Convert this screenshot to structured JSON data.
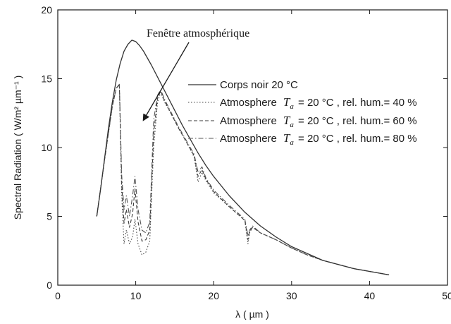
{
  "chart_data": {
    "type": "line",
    "title": "",
    "xlabel": "λ ( µm )",
    "ylabel": "Spectral Radiation ( W/m² µm⁻¹ )",
    "xlim": [
      0,
      50
    ],
    "ylim": [
      0,
      20
    ],
    "xticks": [
      0,
      10,
      20,
      30,
      40,
      50
    ],
    "yticks": [
      0,
      5,
      10,
      15,
      20
    ],
    "grid": false,
    "legend_position": "top-right",
    "annotation": {
      "text": "Fenêtre atmosphérique",
      "arrow_to": [
        11,
        12
      ]
    },
    "series": [
      {
        "name": "Corps noir 20 °C",
        "style": "solid",
        "color": "#333333",
        "x": [
          5,
          5.5,
          6,
          6.5,
          7,
          7.5,
          8,
          8.5,
          9,
          9.5,
          10,
          10.5,
          11,
          11.5,
          12,
          13,
          14,
          15,
          16,
          17,
          18,
          19,
          20,
          22,
          24,
          26,
          28,
          30,
          32,
          34,
          36,
          38,
          40,
          42.5
        ],
        "y": [
          5.0,
          7.0,
          9.2,
          11.4,
          13.3,
          14.9,
          16.1,
          17.0,
          17.5,
          17.8,
          17.7,
          17.4,
          17.0,
          16.5,
          16.0,
          14.9,
          13.8,
          12.7,
          11.6,
          10.6,
          9.6,
          8.7,
          7.9,
          6.5,
          5.3,
          4.3,
          3.5,
          2.8,
          2.3,
          1.8,
          1.5,
          1.2,
          1.0,
          0.75
        ]
      },
      {
        "name": "rel. hum.= 40 %",
        "style": "dotted",
        "color": "#444444",
        "x": [
          5,
          6,
          7,
          7.5,
          7.9,
          8.2,
          8.5,
          8.8,
          9.2,
          9.6,
          9.9,
          10.3,
          10.8,
          11.3,
          11.8,
          12.3,
          12.8,
          13.2,
          13.7,
          14.5,
          15.5,
          16.5,
          17.5,
          18.0,
          18.5,
          19,
          20,
          22,
          24,
          24.4,
          24.6,
          25,
          26,
          28,
          30,
          32,
          34,
          36,
          38,
          40,
          42.5
        ],
        "y": [
          5.0,
          9.1,
          13.0,
          14.3,
          14.5,
          6.5,
          3.0,
          4.0,
          3.0,
          3.5,
          4.8,
          3.0,
          2.2,
          2.4,
          3.2,
          10.0,
          13.3,
          14.0,
          13.3,
          12.5,
          11.4,
          10.4,
          9.3,
          7.5,
          8.2,
          7.6,
          6.7,
          5.7,
          4.7,
          3.0,
          3.8,
          4.2,
          3.8,
          3.3,
          2.7,
          2.2,
          1.8,
          1.5,
          1.2,
          1.0,
          0.75
        ]
      },
      {
        "name": "rel. hum.= 60 %",
        "style": "dashed",
        "color": "#3a3a3a",
        "x": [
          5,
          6,
          7,
          7.5,
          7.9,
          8.2,
          8.5,
          8.8,
          9.2,
          9.6,
          9.9,
          10.3,
          10.8,
          11.3,
          11.8,
          12.3,
          12.8,
          13.2,
          13.7,
          14.5,
          15.5,
          16.5,
          17.5,
          18.0,
          18.5,
          19,
          20,
          22,
          24,
          24.4,
          24.6,
          25,
          26,
          28,
          30,
          32,
          34,
          36,
          38,
          40,
          42.5
        ],
        "y": [
          5.0,
          9.1,
          13.0,
          14.3,
          14.6,
          7.3,
          4.5,
          5.5,
          4.2,
          5.2,
          7.0,
          4.6,
          3.2,
          3.3,
          4.0,
          11.0,
          13.6,
          14.1,
          13.4,
          12.5,
          11.4,
          10.4,
          9.4,
          7.9,
          8.4,
          7.7,
          6.8,
          5.7,
          4.7,
          3.3,
          3.9,
          4.2,
          3.8,
          3.3,
          2.7,
          2.2,
          1.8,
          1.5,
          1.2,
          1.0,
          0.75
        ]
      },
      {
        "name": "rel. hum.= 80 %",
        "style": "dashdot",
        "color": "#555555",
        "x": [
          5,
          6,
          7,
          7.5,
          7.9,
          8.2,
          8.5,
          8.8,
          9.2,
          9.6,
          9.9,
          10.3,
          10.8,
          11.3,
          11.8,
          12.3,
          12.8,
          13.2,
          13.7,
          14.5,
          15.5,
          16.5,
          17.5,
          18.0,
          18.5,
          19,
          20,
          22,
          24,
          24.4,
          24.6,
          25,
          26,
          28,
          30,
          32,
          34,
          36,
          38,
          40,
          42.5
        ],
        "y": [
          5.0,
          9.1,
          13.0,
          14.3,
          14.6,
          8.0,
          5.5,
          6.5,
          5.0,
          6.5,
          7.9,
          5.5,
          4.0,
          3.8,
          4.6,
          12.0,
          13.8,
          14.2,
          13.5,
          12.6,
          11.5,
          10.5,
          9.5,
          8.2,
          8.6,
          7.8,
          6.9,
          5.8,
          4.8,
          3.6,
          4.0,
          4.3,
          3.8,
          3.3,
          2.7,
          2.2,
          1.8,
          1.5,
          1.2,
          1.0,
          0.75
        ]
      }
    ],
    "legend": [
      {
        "series": 0,
        "label_main": "Corps noir",
        "label_tail": "20 °C"
      },
      {
        "series": 1,
        "label_main": "Atmosphere",
        "var": "T",
        "sub": "a",
        "label_tail": "= 20 °C , rel. hum.= 40 %"
      },
      {
        "series": 2,
        "label_main": "Atmosphere",
        "var": "T",
        "sub": "a",
        "label_tail": "= 20 °C , rel. hum.= 60 %"
      },
      {
        "series": 3,
        "label_main": "Atmosphere",
        "var": "T",
        "sub": "a",
        "label_tail": "= 20 °C , rel. hum.= 80 %"
      }
    ]
  }
}
